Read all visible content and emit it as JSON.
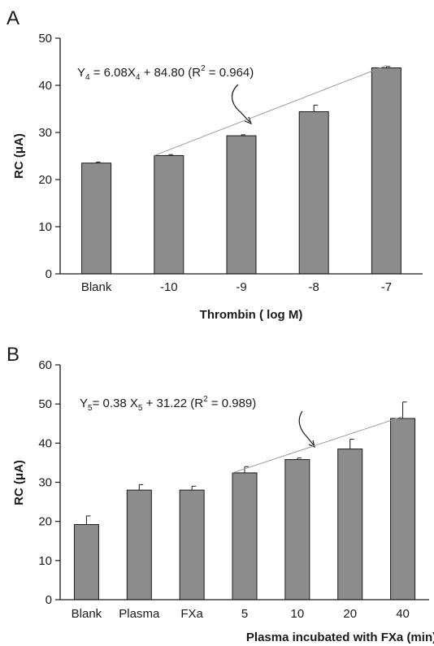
{
  "chart_data": [
    {
      "panel": "A",
      "type": "bar",
      "categories": [
        "Blank",
        "-10",
        "-9",
        "-8",
        "-7"
      ],
      "values": [
        23.5,
        25.1,
        29.3,
        34.4,
        43.7
      ],
      "errors": [
        0.2,
        0.2,
        0.2,
        1.4,
        0.3
      ],
      "xlabel": "Thrombin ( log M)",
      "ylabel": "RC (μA)",
      "ylim": [
        0,
        50
      ],
      "yticks": [
        0,
        10,
        20,
        30,
        40,
        50
      ],
      "fit": {
        "from_category": "-10",
        "to_category": "-7",
        "start_y": 25.1,
        "end_y": 44.2,
        "label": {
          "y": "Y",
          "y_sub": "4",
          "mid": " = 6.08X",
          "x_sub": "4",
          "rest": " + 84.80  (R",
          "sup": "2",
          "end": " = 0.964)"
        }
      },
      "bar_color": "#8c8c8c"
    },
    {
      "panel": "B",
      "type": "bar",
      "categories": [
        "Blank",
        "Plasma",
        "FXa",
        "5",
        "10",
        "20",
        "40"
      ],
      "values": [
        19.2,
        28.0,
        28.0,
        32.4,
        35.8,
        38.5,
        46.3
      ],
      "errors": [
        2.2,
        1.4,
        1.0,
        1.6,
        0.4,
        2.5,
        4.2
      ],
      "xlabel": "Plasma incubated with FXa (min)",
      "ylabel": "RC (μA)",
      "ylim": [
        0,
        60
      ],
      "yticks": [
        0,
        10,
        20,
        30,
        40,
        50,
        60
      ],
      "fit": {
        "from_category": "5",
        "to_category": "40",
        "start_y": 32.4,
        "end_y": 46.8,
        "label": {
          "y": "Y",
          "y_sub": "5",
          "mid": "= 0.38 X",
          "x_sub": "5",
          "rest": " + 31.22  (R",
          "sup": "2",
          "end": " = 0.989)"
        }
      },
      "bar_color": "#8c8c8c"
    }
  ]
}
